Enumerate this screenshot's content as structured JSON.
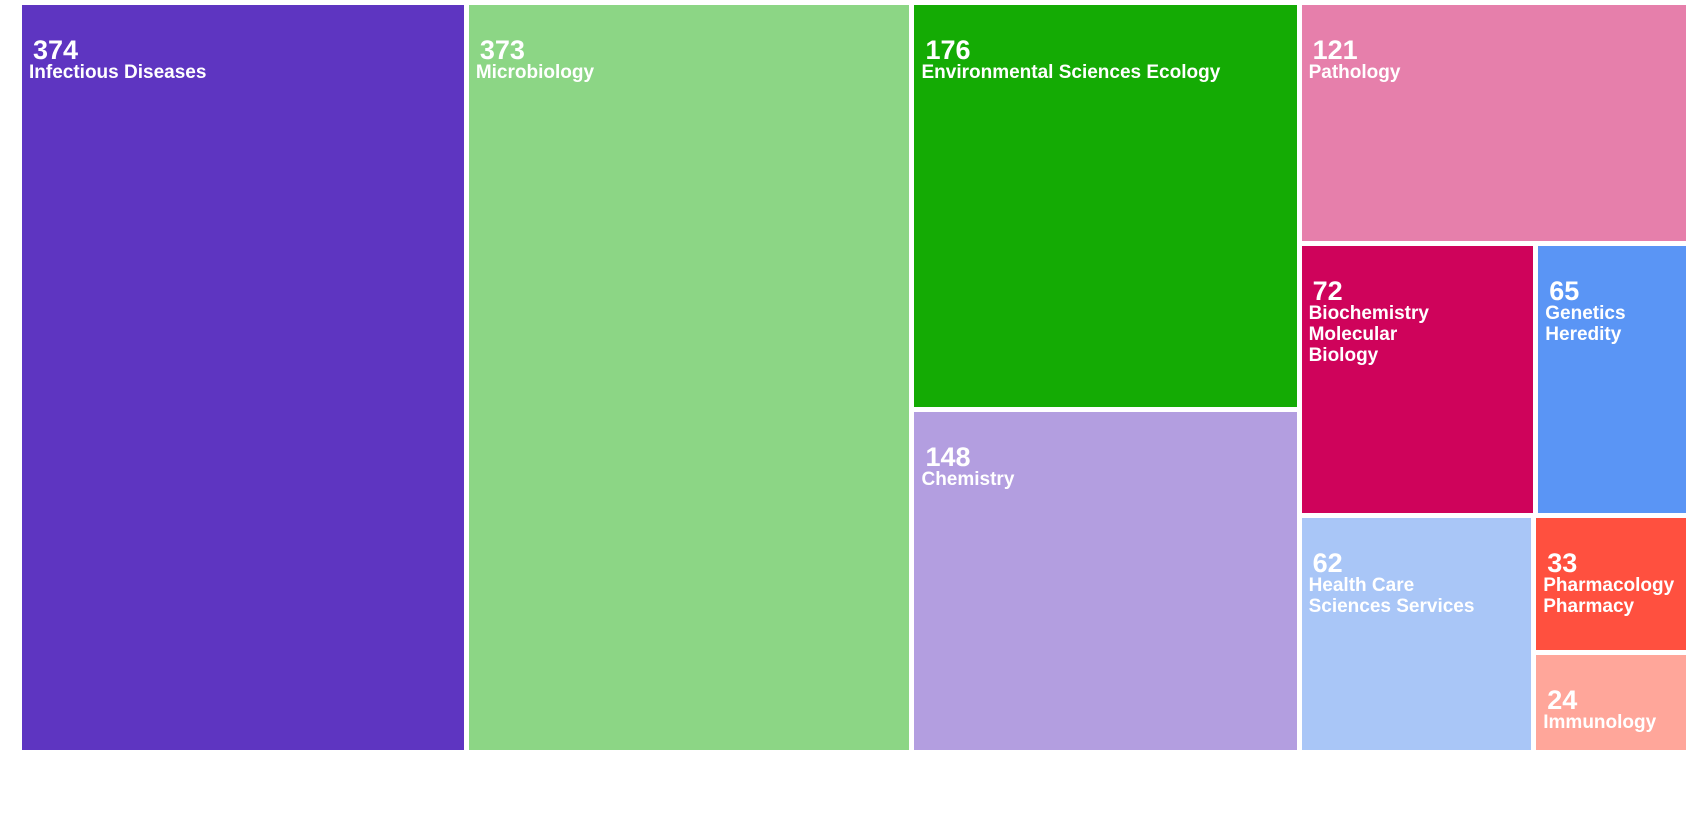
{
  "chart_data": {
    "type": "treemap",
    "title": "",
    "items": [
      {
        "label": "Infectious Diseases",
        "value": 374,
        "color": "#5e35c1"
      },
      {
        "label": "Microbiology",
        "value": 373,
        "color": "#8cd685"
      },
      {
        "label": "Environmental Sciences Ecology",
        "value": 176,
        "color": "#14ab04"
      },
      {
        "label": "Chemistry",
        "value": 148,
        "color": "#b39ee0"
      },
      {
        "label": "Pathology",
        "value": 121,
        "color": "#e67fab"
      },
      {
        "label": "Biochemistry\nMolecular\nBiology",
        "value": 72,
        "color": "#cf035b"
      },
      {
        "label": "Genetics\nHeredity",
        "value": 65,
        "color": "#5a95f5"
      },
      {
        "label": "Health Care\nSciences Services",
        "value": 62,
        "color": "#a9c6f7"
      },
      {
        "label": "Pharmacology\nPharmacy",
        "value": 33,
        "color": "#ff503f"
      },
      {
        "label": "Immunology",
        "value": 24,
        "color": "#ffa69a"
      }
    ]
  }
}
